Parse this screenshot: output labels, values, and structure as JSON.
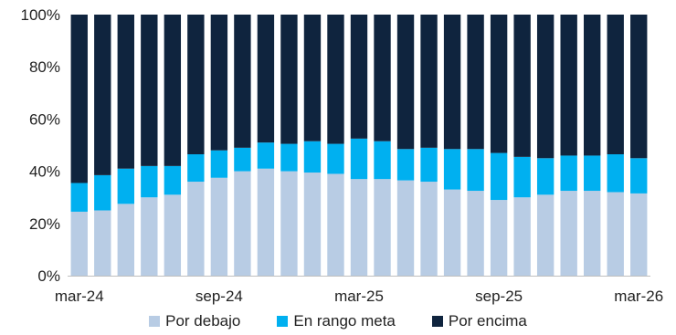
{
  "chart_data": {
    "type": "bar",
    "stacked": true,
    "ylim": [
      0,
      100
    ],
    "yticks": [
      "0%",
      "20%",
      "40%",
      "60%",
      "80%",
      "100%"
    ],
    "ytick_values": [
      0,
      20,
      40,
      60,
      80,
      100
    ],
    "categories": [
      "mar-24",
      "abr-24",
      "may-24",
      "jun-24",
      "jul-24",
      "ago-24",
      "sep-24",
      "oct-24",
      "nov-24",
      "dic-24",
      "ene-25",
      "feb-25",
      "mar-25",
      "abr-25",
      "may-25",
      "jun-25",
      "jul-25",
      "ago-25",
      "sep-25",
      "oct-25",
      "nov-25",
      "dic-25",
      "ene-26",
      "feb-26",
      "mar-26"
    ],
    "xtick_labels": [
      {
        "index": 0,
        "label": "mar-24"
      },
      {
        "index": 6,
        "label": "sep-24"
      },
      {
        "index": 12,
        "label": "mar-25"
      },
      {
        "index": 18,
        "label": "sep-25"
      },
      {
        "index": 24,
        "label": "mar-26"
      }
    ],
    "series": [
      {
        "name": "Por debajo",
        "color": "#b8cce4",
        "values": [
          24.5,
          25,
          27.5,
          30,
          31,
          36,
          37.5,
          40,
          41,
          40,
          39.5,
          39,
          37,
          37,
          36.5,
          36,
          33,
          32.5,
          29,
          30,
          31,
          32.5,
          32.5,
          32,
          31.5
        ]
      },
      {
        "name": "En rango meta",
        "color": "#00b0f0",
        "values": [
          11,
          13.5,
          13.5,
          12,
          11,
          10.5,
          10.5,
          9,
          10,
          10.5,
          12,
          11.5,
          15.5,
          14.5,
          12,
          13,
          15.5,
          16,
          18,
          15.5,
          14,
          13.5,
          13.5,
          14.5,
          13.5
        ]
      },
      {
        "name": "Por encima",
        "color": "#0f243e",
        "values": [
          64.5,
          61.5,
          59,
          58,
          58,
          53.5,
          52,
          51,
          49,
          49.5,
          48.5,
          49.5,
          47.5,
          48.5,
          51.5,
          51,
          51.5,
          51.5,
          53,
          54.5,
          55,
          54,
          54,
          53.5,
          55
        ]
      }
    ],
    "legend_position": "bottom",
    "grid": false
  }
}
